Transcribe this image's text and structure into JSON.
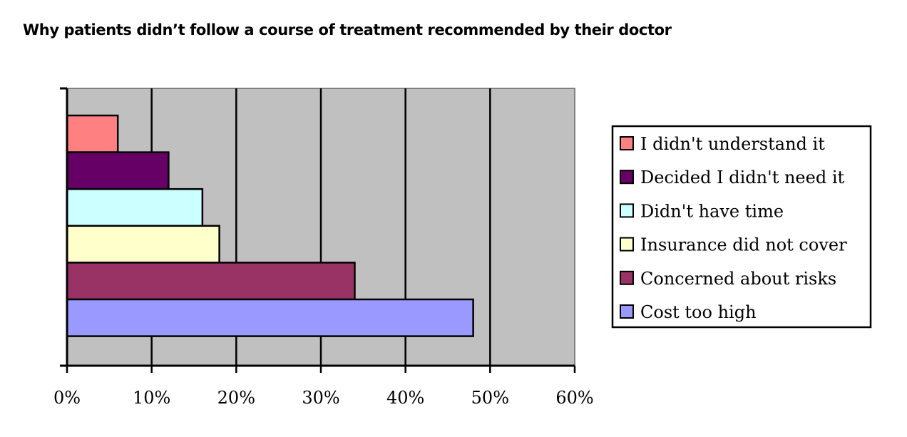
{
  "chart_data": {
    "type": "bar",
    "orientation": "horizontal",
    "title": "Why patients didn’t follow a course of treatment recommended by their doctor",
    "xlabel": "",
    "ylabel": "",
    "xlim": [
      0,
      60
    ],
    "tick_labels": [
      "0%",
      "10%",
      "20%",
      "30%",
      "40%",
      "50%",
      "60%"
    ],
    "grid": true,
    "legend_position": "right",
    "plot_background": "#c0c0c0",
    "series": [
      {
        "name": "I didn't understand it",
        "value": 6,
        "color": "#ff8080"
      },
      {
        "name": "Decided I didn't need it",
        "value": 12,
        "color": "#660066"
      },
      {
        "name": "Didn't have time",
        "value": 16,
        "color": "#ccffff"
      },
      {
        "name": "Insurance did not cover",
        "value": 18,
        "color": "#ffffcc"
      },
      {
        "name": "Concerned about risks",
        "value": 34,
        "color": "#993366"
      },
      {
        "name": "Cost too high",
        "value": 48,
        "color": "#9999ff"
      }
    ]
  }
}
